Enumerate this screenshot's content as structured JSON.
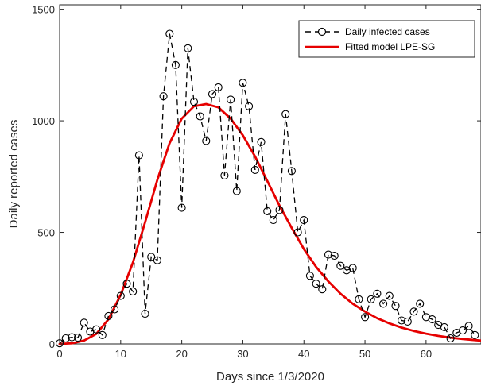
{
  "chart_data": {
    "type": "line",
    "xlabel": "Days since 1/3/2020",
    "ylabel": "Daily reported cases",
    "xlim": [
      0,
      69
    ],
    "ylim": [
      0,
      1520
    ],
    "xticks": [
      0,
      10,
      20,
      30,
      40,
      50,
      60
    ],
    "yticks": [
      0,
      500,
      1000,
      1500
    ],
    "xtick_labels": [
      "0",
      "10",
      "20",
      "30",
      "40",
      "50",
      "60"
    ],
    "ytick_labels": [
      "0",
      "500",
      "1000",
      "1500"
    ],
    "grid": false,
    "legend_position": "top-right",
    "series": [
      {
        "name": "Daily infected cases",
        "style": "dashed-with-circle-markers",
        "color": "#000000",
        "x": [
          0,
          1,
          2,
          3,
          4,
          5,
          6,
          7,
          8,
          9,
          10,
          11,
          12,
          13,
          14,
          15,
          16,
          17,
          18,
          19,
          20,
          21,
          22,
          23,
          24,
          25,
          26,
          27,
          28,
          29,
          30,
          31,
          32,
          33,
          34,
          35,
          36,
          37,
          38,
          39,
          40,
          41,
          42,
          43,
          44,
          45,
          46,
          47,
          48,
          49,
          50,
          51,
          52,
          53,
          54,
          55,
          56,
          57,
          58,
          59,
          60,
          61,
          62,
          63,
          64,
          65,
          66,
          67,
          68
        ],
        "y": [
          3,
          25,
          30,
          28,
          95,
          55,
          65,
          40,
          125,
          155,
          215,
          270,
          235,
          845,
          135,
          390,
          375,
          1110,
          1390,
          1250,
          610,
          1325,
          1085,
          1020,
          910,
          1120,
          1150,
          755,
          1095,
          685,
          1170,
          1065,
          780,
          905,
          595,
          555,
          600,
          1030,
          775,
          500,
          555,
          305,
          270,
          245,
          400,
          395,
          350,
          330,
          340,
          200,
          120,
          200,
          225,
          180,
          215,
          170,
          105,
          100,
          145,
          180,
          120,
          110,
          85,
          75,
          25,
          50,
          60,
          80,
          40
        ]
      },
      {
        "name": "Fitted model LPE-SG",
        "style": "solid",
        "color": "#e60000",
        "x": [
          0,
          2,
          4,
          6,
          8,
          10,
          12,
          14,
          16,
          18,
          20,
          22,
          24,
          26,
          28,
          30,
          32,
          34,
          36,
          38,
          40,
          42,
          44,
          46,
          48,
          50,
          52,
          54,
          56,
          58,
          60,
          62,
          64,
          66,
          68,
          69
        ],
        "y": [
          0,
          3,
          15,
          45,
          110,
          220,
          365,
          545,
          735,
          900,
          1010,
          1065,
          1075,
          1060,
          1010,
          935,
          840,
          730,
          620,
          520,
          425,
          345,
          280,
          225,
          180,
          145,
          115,
          92,
          73,
          58,
          46,
          36,
          28,
          22,
          17,
          15
        ]
      }
    ]
  }
}
